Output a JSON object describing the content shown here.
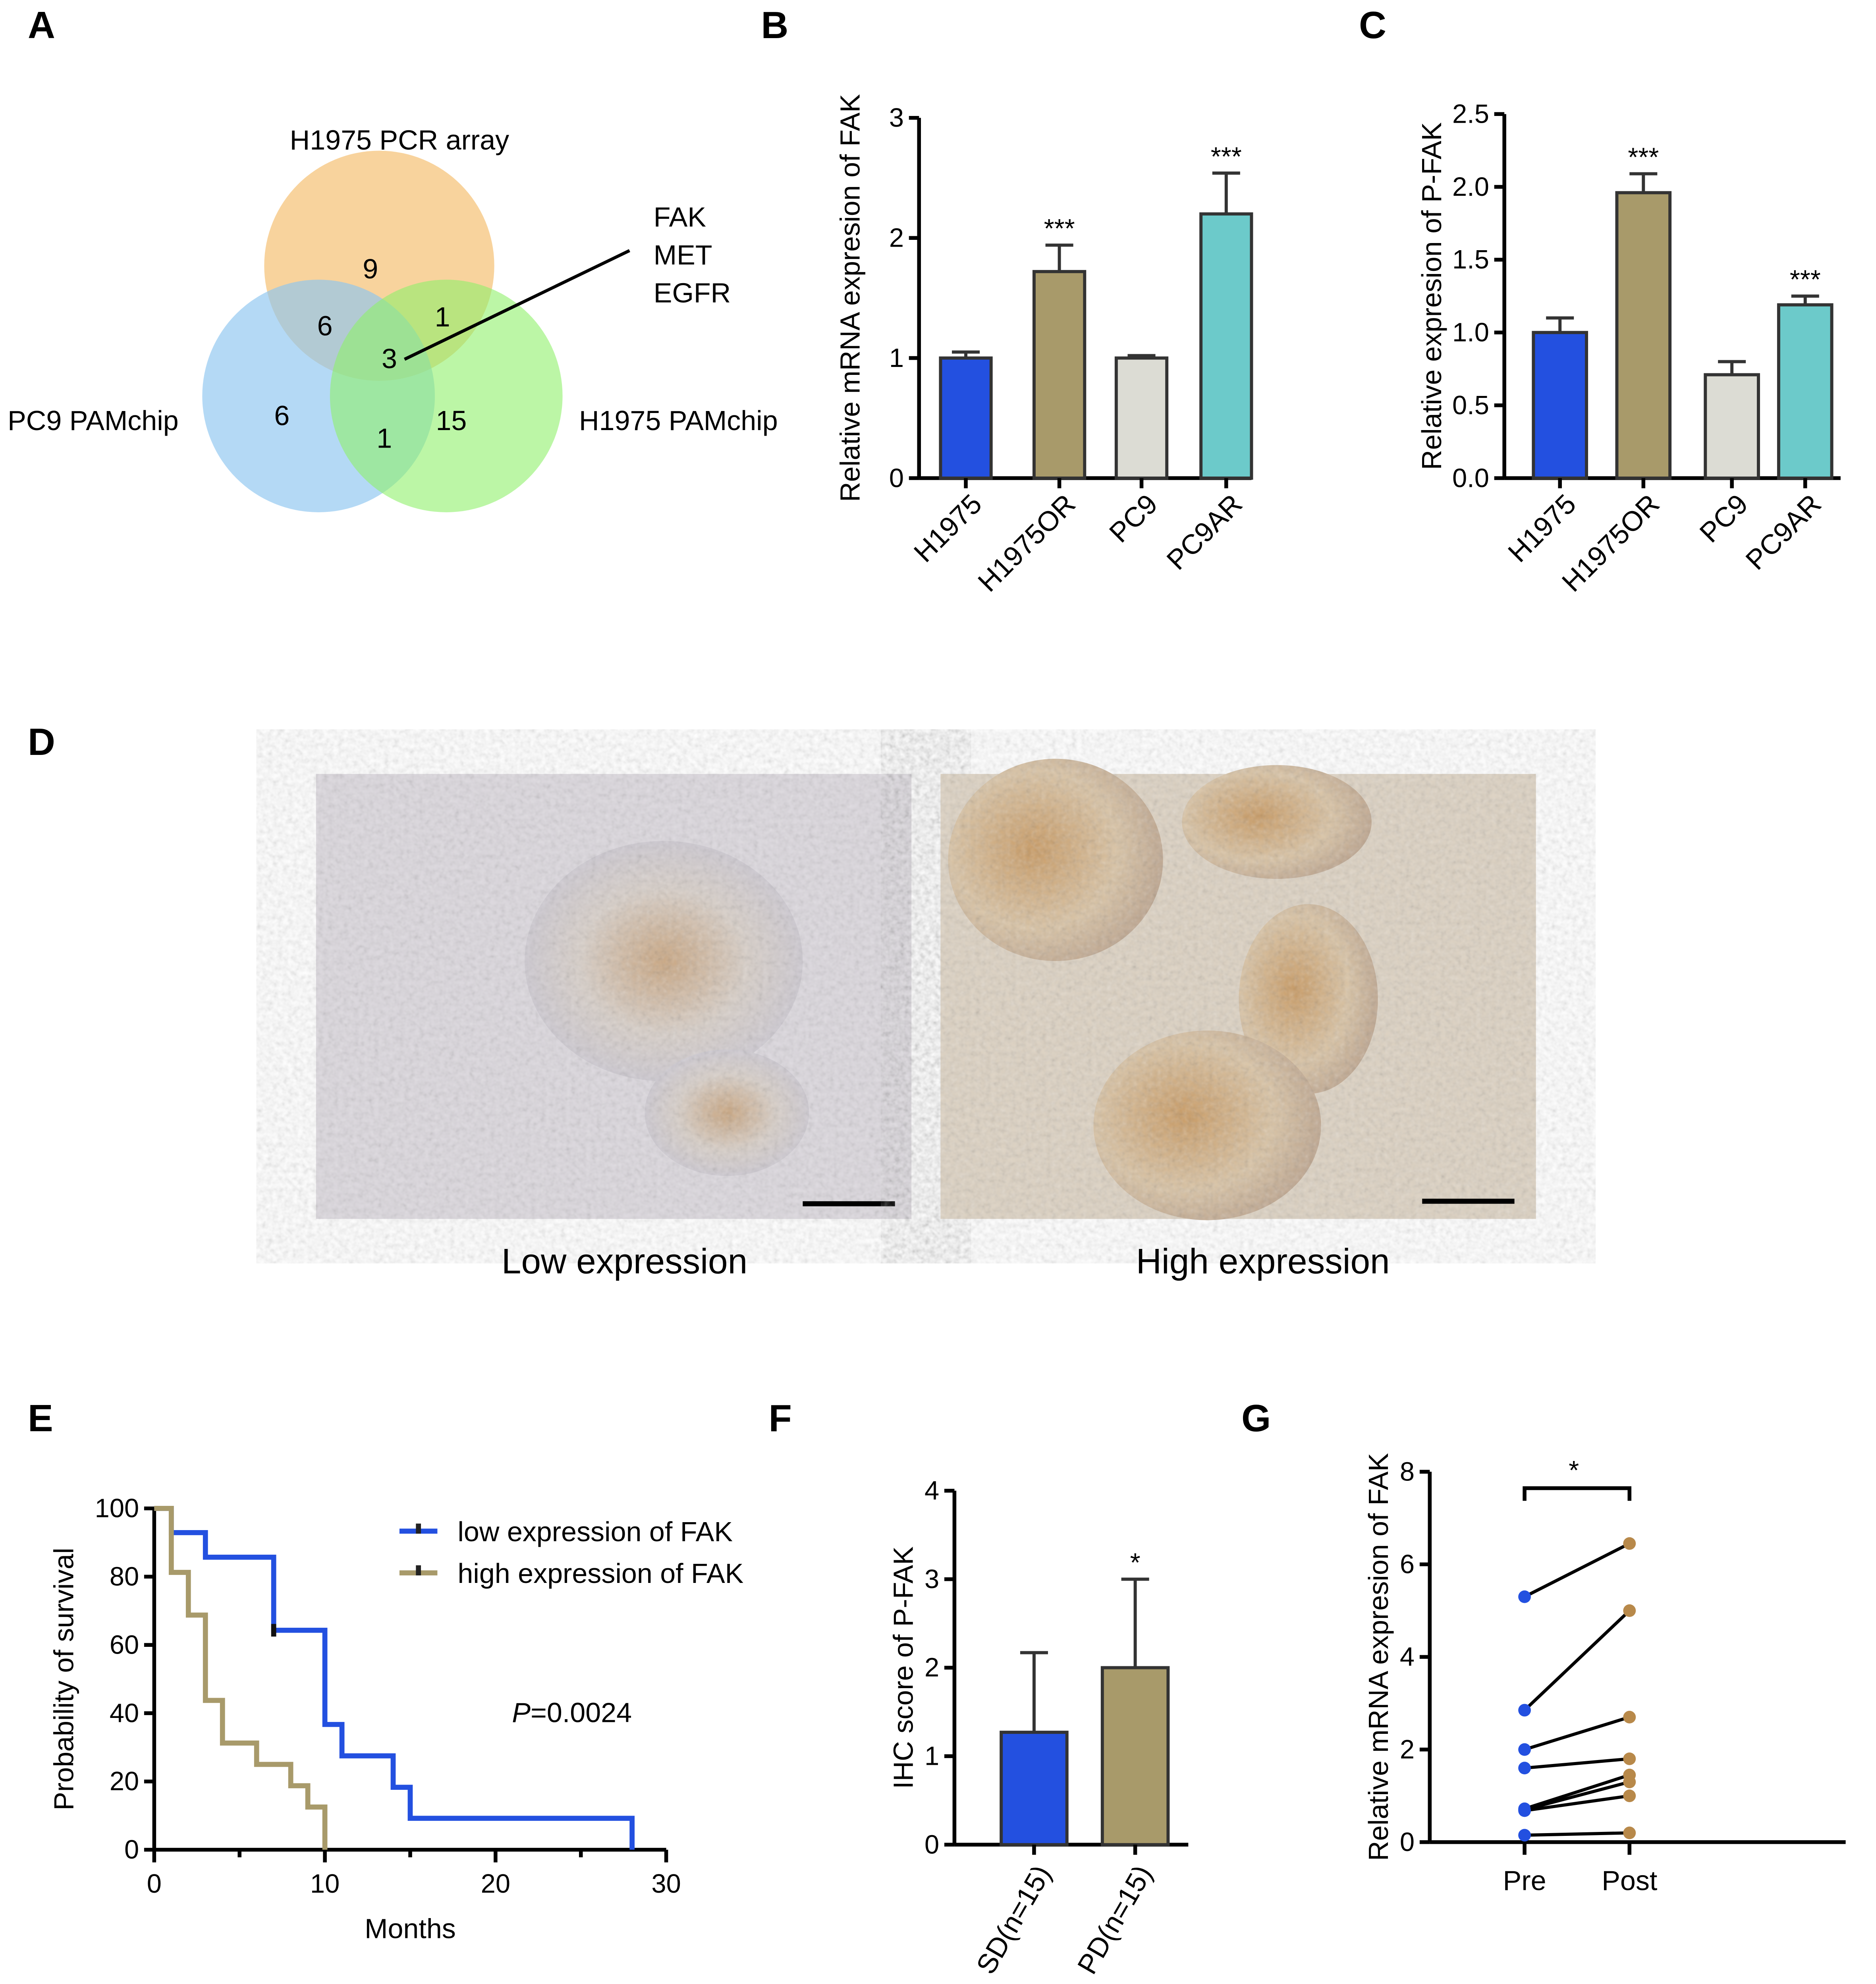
{
  "panels": {
    "a": "A",
    "b": "B",
    "c": "C",
    "d": "D",
    "e": "E",
    "f": "F",
    "g": "G"
  },
  "venn": {
    "sets": [
      {
        "name": "H1975 PCR array",
        "color": "#f6c47c"
      },
      {
        "name": "PC9 PAMchip",
        "color": "#8cc4ef"
      },
      {
        "name": "H1975 PAMchip",
        "color": "#8ff06a"
      }
    ],
    "counts": {
      "pcr_only": "9",
      "pcr_pc9": "6",
      "pcr_h1975pam": "1",
      "all": "3",
      "pc9_only": "6",
      "pc9_h1975pam": "1",
      "h1975pam_only": "15"
    },
    "callout": [
      {
        "text": "FAK",
        "color": "#ff0000"
      },
      {
        "text": "MET",
        "color": "#000000"
      },
      {
        "text": "EGFR",
        "color": "#000000"
      }
    ]
  },
  "ihc": {
    "low_label": "Low expression",
    "high_label": "High expression"
  },
  "chart_data": [
    {
      "id": "B",
      "type": "bar",
      "ylabel": "Relative mRNA expresion of FAK",
      "ylim": [
        0,
        3
      ],
      "yticks": [
        "0",
        "1",
        "2",
        "3"
      ],
      "categories": [
        "H1975",
        "H1975OR",
        "PC9",
        "PC9AR"
      ],
      "values": [
        1.0,
        1.72,
        1.0,
        2.2
      ],
      "errors": [
        0.05,
        0.22,
        0.02,
        0.34
      ],
      "significance": [
        "",
        "***",
        "",
        "***"
      ],
      "colors": [
        "#2350e0",
        "#a89a6a",
        "#dcdcd4",
        "#6ccaca"
      ]
    },
    {
      "id": "C",
      "type": "bar",
      "ylabel": "Relative expresion of P-FAK",
      "ylim": [
        0,
        2.5
      ],
      "yticks": [
        "0.0",
        "0.5",
        "1.0",
        "1.5",
        "2.0",
        "2.5"
      ],
      "categories": [
        "H1975",
        "H1975OR",
        "PC9",
        "PC9AR"
      ],
      "values": [
        1.0,
        1.96,
        0.71,
        1.19
      ],
      "errors": [
        0.1,
        0.13,
        0.09,
        0.06
      ],
      "significance": [
        "",
        "***",
        "",
        "***"
      ],
      "colors": [
        "#2350e0",
        "#a89a6a",
        "#dcdcd4",
        "#6ccaca"
      ]
    },
    {
      "id": "E",
      "type": "line",
      "xlabel": "Months",
      "ylabel": "Probability of survival",
      "xlim": [
        0,
        30
      ],
      "ylim": [
        0,
        100
      ],
      "xticks": [
        "0",
        "10",
        "20",
        "30"
      ],
      "yticks": [
        "0",
        "20",
        "40",
        "60",
        "80",
        "100"
      ],
      "annotation": "P=0.0024",
      "annotation_italic": "P",
      "annotation_rest": "=0.0024",
      "legend_position": "top-right",
      "series": [
        {
          "name": "low expression of FAK",
          "color": "#2350e0",
          "steps": [
            [
              0,
              100
            ],
            [
              1,
              92.9
            ],
            [
              3,
              85.7
            ],
            [
              7,
              64.3
            ],
            [
              10,
              36.7
            ],
            [
              11,
              27.5
            ],
            [
              14,
              18.3
            ],
            [
              15,
              9.2
            ],
            [
              28,
              0
            ]
          ],
          "censored": [
            [
              7,
              64.3
            ]
          ]
        },
        {
          "name": "high expression of FAK",
          "color": "#a89a6a",
          "steps": [
            [
              0,
              100
            ],
            [
              1,
              81.25
            ],
            [
              2,
              68.75
            ],
            [
              3,
              43.75
            ],
            [
              4,
              31.25
            ],
            [
              6,
              25
            ],
            [
              8,
              18.75
            ],
            [
              9,
              12.5
            ],
            [
              10,
              0
            ]
          ],
          "censored": []
        }
      ]
    },
    {
      "id": "F",
      "type": "bar",
      "ylabel": "IHC score of P-FAK",
      "ylim": [
        0,
        4
      ],
      "yticks": [
        "0",
        "1",
        "2",
        "3",
        "4"
      ],
      "categories": [
        "SD(n=15)",
        "PD(n=15)"
      ],
      "values": [
        1.27,
        2.0
      ],
      "errors": [
        0.9,
        1.0
      ],
      "significance": [
        "",
        "*"
      ],
      "colors": [
        "#2350e0",
        "#a89a6a"
      ]
    },
    {
      "id": "G",
      "type": "scatter",
      "ylabel": "Relative mRNA expresion of FAK",
      "ylim": [
        0,
        8
      ],
      "yticks": [
        "0",
        "2",
        "4",
        "6",
        "8"
      ],
      "categories": [
        "Pre",
        "Post"
      ],
      "significance": "*",
      "pairs": [
        [
          5.3,
          6.45
        ],
        [
          2.85,
          5.0
        ],
        [
          2.0,
          2.7
        ],
        [
          1.6,
          1.8
        ],
        [
          0.72,
          1.45
        ],
        [
          0.7,
          1.3
        ],
        [
          0.68,
          1.0
        ],
        [
          0.15,
          0.2
        ]
      ],
      "colors": [
        "#2350e0",
        "#b8894a"
      ]
    }
  ]
}
